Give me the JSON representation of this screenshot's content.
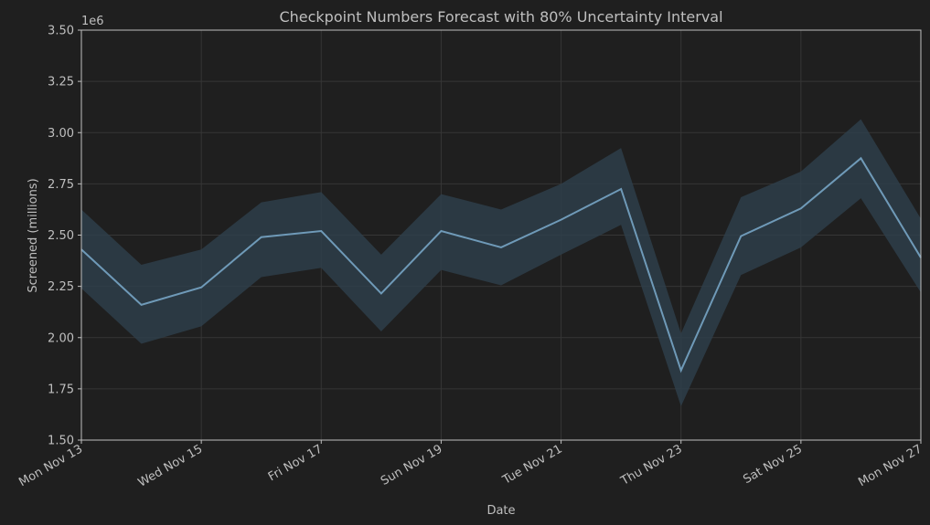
{
  "chart_data": {
    "type": "line",
    "title": "Checkpoint Numbers Forecast with 80% Uncertainty Interval",
    "xlabel": "Date",
    "ylabel": "Screened (millions)",
    "y_offset_label": "1e6",
    "x_tick_labels": [
      "Mon Nov 13",
      "Wed Nov 15",
      "Fri Nov 17",
      "Sun Nov 19",
      "Tue Nov 21",
      "Thu Nov 23",
      "Sat Nov 25",
      "Mon Nov 27"
    ],
    "y_tick_labels": [
      "1.50",
      "1.75",
      "2.00",
      "2.25",
      "2.50",
      "2.75",
      "3.00",
      "3.25",
      "3.50"
    ],
    "y_ticks": [
      1.5,
      1.75,
      2.0,
      2.25,
      2.5,
      2.75,
      3.0,
      3.25,
      3.5
    ],
    "ylim": [
      1.5,
      3.5
    ],
    "grid": true,
    "x": [
      "Nov 13",
      "Nov 14",
      "Nov 15",
      "Nov 16",
      "Nov 17",
      "Nov 18",
      "Nov 19",
      "Nov 20",
      "Nov 21",
      "Nov 22",
      "Nov 23",
      "Nov 24",
      "Nov 25",
      "Nov 26",
      "Nov 27"
    ],
    "series": [
      {
        "values": [
          2.43,
          2.16,
          2.245,
          2.49,
          2.52,
          2.215,
          2.52,
          2.44,
          2.575,
          2.725,
          1.84,
          2.495,
          2.63,
          2.875,
          2.39
        ]
      }
    ],
    "interval": {
      "lower": [
        2.24,
        1.97,
        2.055,
        2.295,
        2.34,
        2.03,
        2.33,
        2.255,
        2.405,
        2.55,
        1.665,
        2.305,
        2.44,
        2.68,
        2.22
      ],
      "upper": [
        2.625,
        2.355,
        2.43,
        2.66,
        2.71,
        2.405,
        2.7,
        2.625,
        2.75,
        2.925,
        2.02,
        2.685,
        2.81,
        3.065,
        2.58
      ]
    },
    "colors": {
      "line": "#6f9ab8",
      "band": "#2e3e4a",
      "background": "#1f1f1f",
      "grid": "#363636",
      "axes": "#bfbfbf"
    }
  }
}
